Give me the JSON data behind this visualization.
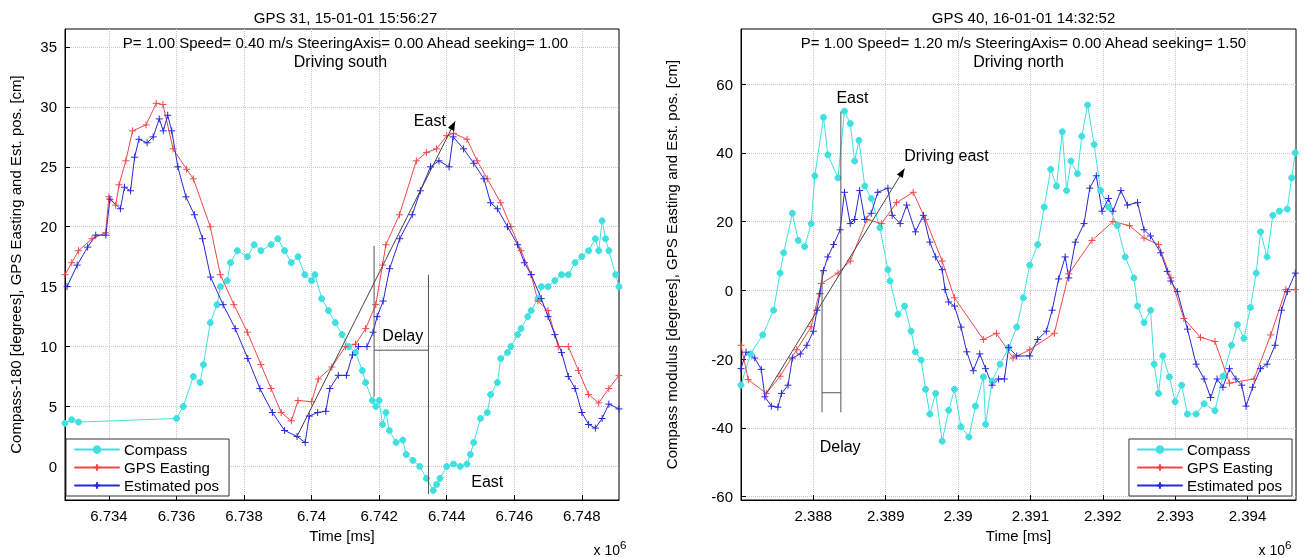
{
  "chart_data": [
    {
      "type": "line",
      "title": "GPS 31, 15-01-01 15:56:27",
      "subtitle": "P= 1.00 Speed= 0.40 m/s SteeringAxis= 0.00 Ahead seeking= 1.00",
      "xlabel": "Time [ms]",
      "ylabel": "Compass-180 [degrees], GPS Easting and Est. pos. [cm]",
      "annotations": [
        "Driving south",
        "East",
        "Delay",
        "East",
        "x 10$^{6}$"
      ],
      "xlim": [
        6.7327,
        6.7491
      ],
      "ylim": [
        -2.8,
        36.5
      ],
      "xticks": [
        6.734,
        6.736,
        6.738,
        6.74,
        6.742,
        6.744,
        6.746,
        6.748
      ],
      "yticks": [
        0,
        5,
        10,
        15,
        20,
        25,
        30,
        35
      ],
      "grid": true,
      "legend": "bottom left",
      "series": [
        {
          "name": "Compass",
          "color": "#40e0e0",
          "marker": "circle",
          "x": [
            6.7327,
            6.7329,
            6.7331,
            6.736,
            6.7362,
            6.7365,
            6.7367,
            6.7368,
            6.737,
            6.7372,
            6.7373,
            6.7375,
            6.7376,
            6.7378,
            6.7381,
            6.7383,
            6.7385,
            6.7388,
            6.739,
            6.7392,
            6.7394,
            6.7396,
            6.7398,
            6.74,
            6.7401,
            6.7403,
            6.7405,
            6.7407,
            6.7409,
            6.7411,
            6.7413,
            6.7415,
            6.7416,
            6.7418,
            6.7419,
            6.742,
            6.7421,
            6.7422,
            6.7423,
            6.7425,
            6.7427,
            6.7428,
            6.743,
            6.7432,
            6.7434,
            6.7436,
            6.7437,
            6.7438,
            6.744,
            6.7442,
            6.7444,
            6.7446,
            6.7447,
            6.7448,
            6.745,
            6.7452,
            6.7453,
            6.7455,
            6.7456,
            6.7458,
            6.7459,
            6.7461,
            6.7462,
            6.7464,
            6.7465,
            6.7467,
            6.7468,
            6.747,
            6.7472,
            6.7474,
            6.7476,
            6.7478,
            6.748,
            6.7482,
            6.7484,
            6.7485,
            6.7486,
            6.7487,
            6.7488,
            6.749,
            6.7491
          ],
          "values": [
            3.6,
            3.9,
            3.7,
            4,
            5,
            7.5,
            7,
            8.5,
            12,
            13.5,
            15,
            15.5,
            17,
            18,
            17.5,
            18.5,
            18,
            18.5,
            19,
            18,
            17,
            17.5,
            16,
            15.5,
            16,
            14,
            13,
            12,
            11,
            10,
            9.5,
            8,
            7,
            5.5,
            5,
            5.5,
            3.5,
            4.5,
            3,
            2,
            2.2,
            1,
            0.5,
            0,
            -1,
            -2,
            -1.5,
            -1,
            0,
            0.2,
            0,
            0.2,
            1,
            2,
            4,
            4.5,
            6,
            7,
            9,
            9.5,
            10,
            11,
            11.5,
            12.5,
            13,
            14,
            15,
            15,
            15.5,
            16,
            16,
            17,
            17.5,
            18,
            19,
            18,
            20.5,
            19,
            18,
            16,
            15
          ]
        },
        {
          "name": "GPS Easting",
          "color": "#f04848",
          "marker": "cross",
          "x": [
            6.7327,
            6.7329,
            6.7331,
            6.7335,
            6.7339,
            6.734,
            6.7342,
            6.7343,
            6.7345,
            6.7347,
            6.7351,
            6.7354,
            6.7356,
            6.7359,
            6.7363,
            6.7365,
            6.737,
            6.7373,
            6.7377,
            6.7381,
            6.7385,
            6.7388,
            6.7391,
            6.7394,
            6.7396,
            6.74,
            6.7402,
            6.7406,
            6.741,
            6.7413,
            6.7416,
            6.7419,
            6.7421,
            6.7422,
            6.7426,
            6.7431,
            6.7434,
            6.7437,
            6.744,
            6.7442,
            6.7446,
            6.7449,
            6.7452,
            6.7456,
            6.7459,
            6.7462,
            6.7465,
            6.7467,
            6.747,
            6.7473,
            6.7476,
            6.7479,
            6.7482,
            6.7485,
            6.7488,
            6.7491
          ],
          "values": [
            16,
            17,
            18,
            19,
            19.5,
            22.5,
            21.8,
            23.5,
            25.5,
            28,
            28.5,
            30.3,
            30.2,
            26.5,
            24.8,
            24,
            20,
            16,
            13.5,
            11.2,
            8.5,
            6.5,
            4.5,
            3.8,
            5.5,
            5.4,
            7.3,
            8.3,
            10,
            10.2,
            11.5,
            13.5,
            16.8,
            18.5,
            21,
            25.5,
            26.2,
            26.5,
            27.6,
            27.8,
            27.3,
            25.5,
            24,
            22,
            20,
            18,
            16,
            13.8,
            13,
            10,
            10,
            8,
            6,
            5.3,
            6.5,
            7.6
          ]
        },
        {
          "name": "Estimated pos",
          "color": "#2828d8",
          "marker": "cross",
          "x": [
            6.73276,
            6.73306,
            6.73337,
            6.73361,
            6.73391,
            6.73403,
            6.73434,
            6.73446,
            6.73464,
            6.73476,
            6.73489,
            6.73513,
            6.73531,
            6.73549,
            6.73561,
            6.73574,
            6.73586,
            6.73604,
            6.73628,
            6.73653,
            6.73677,
            6.73701,
            6.73738,
            6.73774,
            6.73811,
            6.73847,
            6.73884,
            6.7392,
            6.73957,
            6.73981,
            6.73993,
            6.74018,
            6.74042,
            6.74054,
            6.74079,
            6.74103,
            6.74121,
            6.74139,
            6.74164,
            6.74182,
            6.74194,
            6.74212,
            6.74231,
            6.74261,
            6.74298,
            6.74322,
            6.74352,
            6.74377,
            6.74407,
            6.74419,
            6.7445,
            6.7448,
            6.7451,
            6.7453,
            6.7455,
            6.7458,
            6.7461,
            6.7463,
            6.7465,
            6.7468,
            6.747,
            6.7472,
            6.7474,
            6.7476,
            6.7478,
            6.748,
            6.7482,
            6.7484,
            6.7486,
            6.7488,
            6.7491
          ],
          "values": [
            15,
            16.8,
            18.3,
            19.3,
            19.3,
            22.3,
            21.5,
            23.3,
            23,
            25.8,
            27.3,
            27,
            27.5,
            29,
            28,
            29.3,
            28,
            25,
            22.5,
            21,
            19,
            15.8,
            13.5,
            11.5,
            9,
            6.5,
            4.5,
            3,
            2.5,
            2,
            4.2,
            4.5,
            4.6,
            6.5,
            7.6,
            7.6,
            9.3,
            10,
            10,
            11.2,
            12.5,
            13.8,
            16.5,
            19,
            21,
            23,
            25,
            25.5,
            25,
            27.5,
            26.5,
            25.3,
            24,
            22,
            21.5,
            20,
            18.5,
            17,
            16,
            14,
            12.5,
            11,
            9.5,
            7.5,
            6.5,
            4.5,
            3.5,
            3.2,
            4,
            5.2,
            4.8
          ]
        }
      ]
    },
    {
      "type": "line",
      "title": "GPS 40, 16-01-01 14:32:52",
      "subtitle": "P= 1.00 Speed= 1.20 m/s SteeringAxis= 0.00 Ahead seeking= 1.50",
      "xlabel": "Time [ms]",
      "ylabel": "Compass modulus [degrees], GPS Easting and Est. pos. [cm]",
      "annotations": [
        "Driving north",
        "East",
        "Driving east",
        "Delay",
        "x 10$^{6}$"
      ],
      "xlim": [
        2.387,
        2.39467
      ],
      "ylim": [
        -61,
        76
      ],
      "xticks": [
        2.388,
        2.389,
        2.39,
        2.391,
        2.392,
        2.393,
        2.394
      ],
      "yticks": [
        -60,
        -40,
        -20,
        0,
        20,
        40,
        60
      ],
      "grid": true,
      "legend": "bottom right",
      "series": [
        {
          "name": "Compass",
          "color": "#40e0e0",
          "marker": "circle",
          "x": [
            2.387,
            2.38713,
            2.3873,
            2.38745,
            2.38754,
            2.38759,
            2.38771,
            2.38779,
            2.38788,
            2.38797,
            2.38802,
            2.38814,
            2.3882,
            2.38834,
            2.38843,
            2.38851,
            2.38857,
            2.38863,
            2.38871,
            2.3888,
            2.38892,
            2.38903,
            2.38906,
            2.38917,
            2.38926,
            2.38935,
            2.38941,
            2.38949,
            2.38955,
            2.38961,
            2.38969,
            2.38978,
            2.38987,
            2.38995,
            2.39004,
            2.39015,
            2.39024,
            2.39035,
            2.39038,
            2.39047,
            2.39058,
            2.3907,
            2.39081,
            2.3909,
            2.39099,
            2.3911,
            2.39119,
            2.39128,
            2.39136,
            2.39144,
            2.3915,
            2.39156,
            2.39165,
            2.39171,
            2.39179,
            2.39188,
            2.39197,
            2.39208,
            2.3922,
            2.39231,
            2.39243,
            2.39248,
            2.39257,
            2.39266,
            2.39271,
            2.39277,
            2.39283,
            2.39292,
            2.393,
            2.39309,
            2.39317,
            2.39329,
            2.3934,
            2.39355,
            2.39366,
            2.39378,
            2.39386,
            2.39395,
            2.39404,
            2.39412,
            2.39418,
            2.39427,
            2.39435,
            2.39444,
            2.39455,
            2.39461,
            2.39466
          ],
          "values": [
            -27.6,
            -18.5,
            -13,
            -5.8,
            5,
            10.9,
            22.4,
            14.5,
            12.7,
            19.4,
            33.3,
            50.3,
            39.4,
            32.7,
            52.1,
            48.5,
            37.6,
            43.6,
            30.3,
            26.7,
            18.2,
            6,
            2.7,
            -7,
            -4.6,
            -11.9,
            -17.9,
            -20.3,
            -28.8,
            -36,
            -30,
            -43.9,
            -34.9,
            -28.8,
            -39.7,
            -42.7,
            -33.7,
            -25.2,
            -39,
            -26.4,
            -21.5,
            -16.7,
            -10.7,
            -2.2,
            7.3,
            13.3,
            24.2,
            35.2,
            30.3,
            46.1,
            29,
            37.6,
            33.9,
            44.8,
            53.9,
            42.4,
            29,
            24.2,
            18.8,
            9.7,
            3.6,
            -4.6,
            -9.4,
            -5.8,
            -21.5,
            -30,
            -19.1,
            -25.2,
            -32.4,
            -27.6,
            -36,
            -36,
            -33,
            -35,
            -25,
            -16,
            -10,
            -14,
            -5,
            5,
            17,
            9.7,
            21.8,
            23,
            23.6,
            32.7,
            40
          ]
        },
        {
          "name": "GPS Easting",
          "color": "#f04848",
          "marker": "cross",
          "x": [
            2.387,
            2.3871,
            2.38735,
            2.38754,
            2.38777,
            2.38797,
            2.38811,
            2.38834,
            2.38851,
            2.38874,
            2.38894,
            2.38915,
            2.38938,
            2.38955,
            2.38978,
            2.38995,
            2.39035,
            2.39053,
            2.39076,
            2.39099,
            2.39133,
            2.39153,
            2.39185,
            2.39214,
            2.39237,
            2.39257,
            2.39277,
            2.39294,
            2.39312,
            2.39335,
            2.39355,
            2.39375,
            2.39409,
            2.39432,
            2.39453,
            2.39466
          ],
          "values": [
            -16,
            -26,
            -30,
            -25,
            -17.3,
            -10.6,
            2,
            5,
            8.5,
            20.6,
            19.4,
            25.5,
            28.5,
            20.6,
            8.5,
            -2.2,
            -14.3,
            -12.5,
            -19.7,
            -17.3,
            -12.5,
            4.8,
            14.5,
            20,
            18.8,
            15.2,
            13.3,
            3.6,
            -8.2,
            -13.7,
            -14.9,
            -27,
            -25.8,
            -13,
            0.2,
            0.2
          ]
        },
        {
          "name": "Estimated pos",
          "color": "#2828d8",
          "marker": "cross",
          "x": [
            2.387,
            2.38707,
            2.38719,
            2.38728,
            2.38733,
            2.38742,
            2.38751,
            2.38756,
            2.38765,
            2.38771,
            2.38782,
            2.38791,
            2.388,
            2.38805,
            2.38809,
            2.38814,
            2.3882,
            2.38828,
            2.38837,
            2.38843,
            2.38851,
            2.38857,
            2.38864,
            2.38871,
            2.3888,
            2.38889,
            2.38903,
            2.38909,
            2.3892,
            2.38929,
            2.38941,
            2.38952,
            2.38961,
            2.38969,
            2.38978,
            2.38982,
            2.38987,
            2.38995,
            2.39004,
            2.39012,
            2.39021,
            2.3903,
            2.39038,
            2.39047,
            2.39056,
            2.39064,
            2.3907,
            2.39081,
            2.39099,
            2.3911,
            2.39122,
            2.3913,
            2.39139,
            2.39148,
            2.39153,
            2.39162,
            2.39174,
            2.39182,
            2.39191,
            2.39199,
            2.39208,
            2.39214,
            2.39225,
            2.39234,
            2.39248,
            2.39257,
            2.39266,
            2.3928,
            2.39289,
            2.39294,
            2.39303,
            2.39317,
            2.39329,
            2.3934,
            2.39349,
            2.39358,
            2.39366,
            2.39375,
            2.39384,
            2.39392,
            2.39398,
            2.39407,
            2.39418,
            2.39427,
            2.39438,
            2.39447,
            2.39455,
            2.39466
          ],
          "values": [
            -22.8,
            -18,
            -19.7,
            -23,
            -31,
            -33.7,
            -34,
            -30,
            -27.6,
            -19.7,
            -18.5,
            -16,
            -11.9,
            -5.8,
            -1,
            5.7,
            9.7,
            13.3,
            17.6,
            28.5,
            19.4,
            20.6,
            29,
            20.6,
            22.4,
            28.5,
            29.7,
            21.8,
            19.4,
            24.8,
            17,
            21.8,
            14,
            9.7,
            6,
            0.2,
            -3.4,
            -4.6,
            -10.7,
            -17.9,
            -23.4,
            -18.5,
            -22.8,
            -27.6,
            -25.8,
            -25.8,
            -16.7,
            -19.1,
            -19.1,
            -14.3,
            -11.9,
            -5.8,
            3.3,
            9.7,
            3.6,
            14,
            19.4,
            29.7,
            33.3,
            23,
            26.7,
            23,
            29,
            24.8,
            25.5,
            17.6,
            15.8,
            10.9,
            5.5,
            2.7,
            -0.4,
            -11.3,
            -21.5,
            -25.8,
            -31.2,
            -25.8,
            -28.2,
            -22.8,
            -25.8,
            -27.6,
            -33.7,
            -28.2,
            -22.8,
            -21.5,
            -16,
            -5.8,
            -0.4,
            5
          ]
        }
      ]
    }
  ]
}
